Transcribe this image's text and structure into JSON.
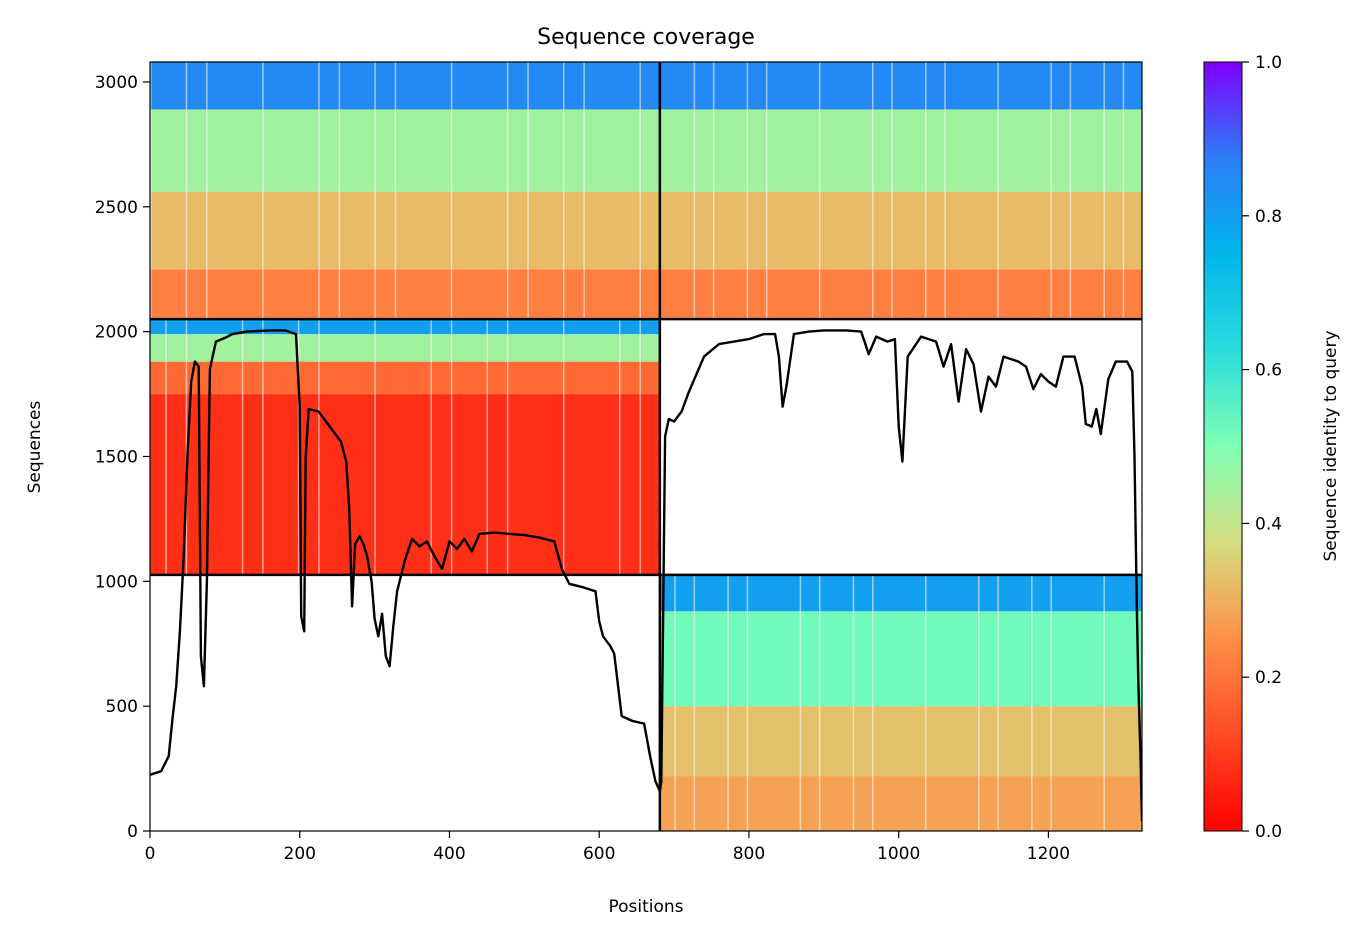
{
  "chart_data": {
    "type": "heatmap",
    "title": "Sequence coverage",
    "xlabel": "Positions",
    "ylabel": "Sequences",
    "xlim": [
      0,
      1325
    ],
    "ylim": [
      0,
      3080
    ],
    "xticks": [
      0,
      200,
      400,
      600,
      800,
      1000,
      1200
    ],
    "yticks": [
      0,
      500,
      1000,
      1500,
      2000,
      2500,
      3000
    ],
    "colorbar": {
      "label": "Sequence identity to query",
      "colormap": "rainbow_r",
      "range": [
        0.0,
        1.0
      ],
      "ticks": [
        0.0,
        0.2,
        0.4,
        0.6,
        0.8,
        1.0
      ]
    },
    "divider_lines": {
      "vertical_x": [
        681
      ],
      "horizontal_y": [
        1026,
        2050
      ]
    },
    "blocks": [
      {
        "label": "top-left",
        "x": [
          0,
          681
        ],
        "y": [
          2050,
          3080
        ],
        "identity_bands": [
          {
            "y": [
              2050,
              2250
            ],
            "identity": 0.22
          },
          {
            "y": [
              2250,
              2560
            ],
            "identity": 0.32
          },
          {
            "y": [
              2560,
              2890
            ],
            "identity": 0.45
          },
          {
            "y": [
              2890,
              3080
            ],
            "identity": 0.85
          }
        ]
      },
      {
        "label": "top-right",
        "x": [
          681,
          1325
        ],
        "y": [
          2050,
          3080
        ],
        "identity_bands": [
          {
            "y": [
              2050,
              2250
            ],
            "identity": 0.22
          },
          {
            "y": [
              2250,
              2560
            ],
            "identity": 0.32
          },
          {
            "y": [
              2560,
              2890
            ],
            "identity": 0.45
          },
          {
            "y": [
              2890,
              3080
            ],
            "identity": 0.85
          }
        ]
      },
      {
        "label": "middle-left",
        "x": [
          0,
          681
        ],
        "y": [
          1026,
          2050
        ],
        "identity_bands": [
          {
            "y": [
              1026,
              1750
            ],
            "identity": 0.08
          },
          {
            "y": [
              1750,
              1880
            ],
            "identity": 0.18
          },
          {
            "y": [
              1880,
              1990
            ],
            "identity": 0.45
          },
          {
            "y": [
              1990,
              2050
            ],
            "identity": 0.8
          }
        ]
      },
      {
        "label": "bottom-right",
        "x": [
          681,
          1325
        ],
        "y": [
          0,
          1026
        ],
        "identity_bands": [
          {
            "y": [
              0,
              220
            ],
            "identity": 0.28
          },
          {
            "y": [
              220,
              500
            ],
            "identity": 0.33
          },
          {
            "y": [
              500,
              880
            ],
            "identity": 0.52
          },
          {
            "y": [
              880,
              1026
            ],
            "identity": 0.8
          }
        ]
      }
    ],
    "coverage_series": [
      {
        "x": 0,
        "y": 225
      },
      {
        "x": 15,
        "y": 240
      },
      {
        "x": 25,
        "y": 300
      },
      {
        "x": 30,
        "y": 450
      },
      {
        "x": 35,
        "y": 580
      },
      {
        "x": 40,
        "y": 800
      },
      {
        "x": 45,
        "y": 1100
      },
      {
        "x": 50,
        "y": 1500
      },
      {
        "x": 55,
        "y": 1800
      },
      {
        "x": 60,
        "y": 1880
      },
      {
        "x": 65,
        "y": 1860
      },
      {
        "x": 68,
        "y": 700
      },
      {
        "x": 72,
        "y": 580
      },
      {
        "x": 76,
        "y": 1000
      },
      {
        "x": 80,
        "y": 1850
      },
      {
        "x": 88,
        "y": 1960
      },
      {
        "x": 100,
        "y": 1975
      },
      {
        "x": 110,
        "y": 1990
      },
      {
        "x": 130,
        "y": 2000
      },
      {
        "x": 160,
        "y": 2005
      },
      {
        "x": 180,
        "y": 2005
      },
      {
        "x": 195,
        "y": 1990
      },
      {
        "x": 200,
        "y": 1700
      },
      {
        "x": 202,
        "y": 860
      },
      {
        "x": 206,
        "y": 800
      },
      {
        "x": 208,
        "y": 1500
      },
      {
        "x": 212,
        "y": 1690
      },
      {
        "x": 225,
        "y": 1680
      },
      {
        "x": 240,
        "y": 1620
      },
      {
        "x": 255,
        "y": 1560
      },
      {
        "x": 262,
        "y": 1480
      },
      {
        "x": 266,
        "y": 1300
      },
      {
        "x": 270,
        "y": 900
      },
      {
        "x": 274,
        "y": 1150
      },
      {
        "x": 280,
        "y": 1180
      },
      {
        "x": 285,
        "y": 1150
      },
      {
        "x": 290,
        "y": 1100
      },
      {
        "x": 296,
        "y": 1000
      },
      {
        "x": 300,
        "y": 850
      },
      {
        "x": 305,
        "y": 780
      },
      {
        "x": 310,
        "y": 870
      },
      {
        "x": 315,
        "y": 700
      },
      {
        "x": 320,
        "y": 660
      },
      {
        "x": 325,
        "y": 820
      },
      {
        "x": 330,
        "y": 960
      },
      {
        "x": 340,
        "y": 1080
      },
      {
        "x": 350,
        "y": 1170
      },
      {
        "x": 360,
        "y": 1140
      },
      {
        "x": 370,
        "y": 1160
      },
      {
        "x": 380,
        "y": 1100
      },
      {
        "x": 390,
        "y": 1050
      },
      {
        "x": 400,
        "y": 1160
      },
      {
        "x": 410,
        "y": 1130
      },
      {
        "x": 420,
        "y": 1170
      },
      {
        "x": 430,
        "y": 1120
      },
      {
        "x": 440,
        "y": 1190
      },
      {
        "x": 460,
        "y": 1195
      },
      {
        "x": 480,
        "y": 1190
      },
      {
        "x": 500,
        "y": 1185
      },
      {
        "x": 520,
        "y": 1175
      },
      {
        "x": 540,
        "y": 1160
      },
      {
        "x": 550,
        "y": 1050
      },
      {
        "x": 560,
        "y": 990
      },
      {
        "x": 580,
        "y": 975
      },
      {
        "x": 595,
        "y": 960
      },
      {
        "x": 600,
        "y": 840
      },
      {
        "x": 605,
        "y": 780
      },
      {
        "x": 615,
        "y": 740
      },
      {
        "x": 620,
        "y": 710
      },
      {
        "x": 630,
        "y": 460
      },
      {
        "x": 645,
        "y": 440
      },
      {
        "x": 660,
        "y": 430
      },
      {
        "x": 668,
        "y": 300
      },
      {
        "x": 675,
        "y": 200
      },
      {
        "x": 681,
        "y": 160
      },
      {
        "x": 683,
        "y": 200
      },
      {
        "x": 688,
        "y": 1580
      },
      {
        "x": 693,
        "y": 1650
      },
      {
        "x": 700,
        "y": 1640
      },
      {
        "x": 710,
        "y": 1680
      },
      {
        "x": 720,
        "y": 1760
      },
      {
        "x": 740,
        "y": 1900
      },
      {
        "x": 760,
        "y": 1950
      },
      {
        "x": 780,
        "y": 1960
      },
      {
        "x": 800,
        "y": 1970
      },
      {
        "x": 820,
        "y": 1990
      },
      {
        "x": 835,
        "y": 1990
      },
      {
        "x": 840,
        "y": 1900
      },
      {
        "x": 845,
        "y": 1700
      },
      {
        "x": 850,
        "y": 1780
      },
      {
        "x": 860,
        "y": 1990
      },
      {
        "x": 880,
        "y": 2000
      },
      {
        "x": 900,
        "y": 2005
      },
      {
        "x": 930,
        "y": 2005
      },
      {
        "x": 950,
        "y": 2000
      },
      {
        "x": 960,
        "y": 1910
      },
      {
        "x": 970,
        "y": 1980
      },
      {
        "x": 985,
        "y": 1960
      },
      {
        "x": 995,
        "y": 1970
      },
      {
        "x": 1000,
        "y": 1620
      },
      {
        "x": 1005,
        "y": 1480
      },
      {
        "x": 1012,
        "y": 1900
      },
      {
        "x": 1030,
        "y": 1980
      },
      {
        "x": 1050,
        "y": 1960
      },
      {
        "x": 1060,
        "y": 1860
      },
      {
        "x": 1070,
        "y": 1950
      },
      {
        "x": 1080,
        "y": 1720
      },
      {
        "x": 1090,
        "y": 1930
      },
      {
        "x": 1100,
        "y": 1870
      },
      {
        "x": 1110,
        "y": 1680
      },
      {
        "x": 1120,
        "y": 1820
      },
      {
        "x": 1130,
        "y": 1780
      },
      {
        "x": 1140,
        "y": 1900
      },
      {
        "x": 1160,
        "y": 1880
      },
      {
        "x": 1170,
        "y": 1860
      },
      {
        "x": 1180,
        "y": 1770
      },
      {
        "x": 1190,
        "y": 1830
      },
      {
        "x": 1200,
        "y": 1800
      },
      {
        "x": 1210,
        "y": 1780
      },
      {
        "x": 1220,
        "y": 1900
      },
      {
        "x": 1235,
        "y": 1900
      },
      {
        "x": 1245,
        "y": 1780
      },
      {
        "x": 1250,
        "y": 1630
      },
      {
        "x": 1258,
        "y": 1620
      },
      {
        "x": 1264,
        "y": 1690
      },
      {
        "x": 1270,
        "y": 1590
      },
      {
        "x": 1280,
        "y": 1810
      },
      {
        "x": 1290,
        "y": 1880
      },
      {
        "x": 1305,
        "y": 1880
      },
      {
        "x": 1312,
        "y": 1840
      },
      {
        "x": 1315,
        "y": 1500
      },
      {
        "x": 1318,
        "y": 900
      },
      {
        "x": 1320,
        "y": 600
      },
      {
        "x": 1323,
        "y": 300
      },
      {
        "x": 1325,
        "y": 40
      }
    ]
  }
}
